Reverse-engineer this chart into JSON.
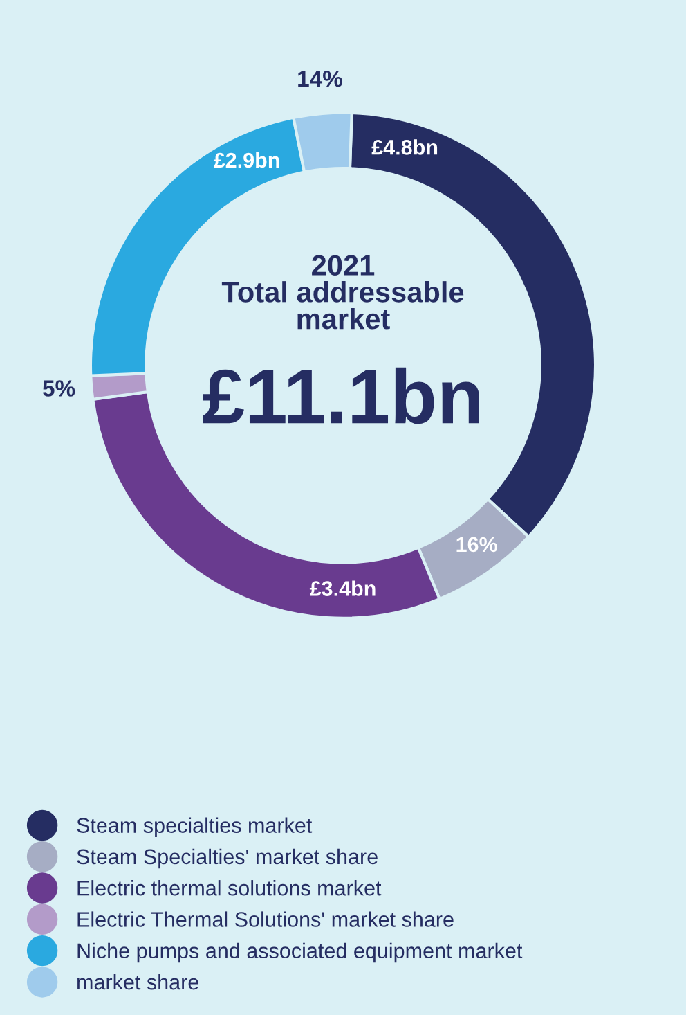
{
  "chart_data": {
    "type": "donut",
    "title": "2021\nTotal addressable\nmarket",
    "categories": [
      "Steam specialties market",
      "Steam Specialties' market share",
      "Electric thermal solutions market",
      "Electric Thermal Solutions' market share",
      "Niche pumps and associated equipment market",
      "market share"
    ],
    "values": [
      36.3,
      6.9,
      29.1,
      1.5,
      22.5,
      3.7
    ],
    "colors": [
      "#252d62",
      "#a6adc4",
      "#693b8f",
      "#b39bc9",
      "#2aa9e0",
      "#9fcbec"
    ],
    "annotations": [
      "£11.1bn",
      "£4.8bn",
      "16%",
      "£3.4bn",
      "5%",
      "£2.9bn",
      "14%"
    ],
    "legend": "bottom"
  }
}
